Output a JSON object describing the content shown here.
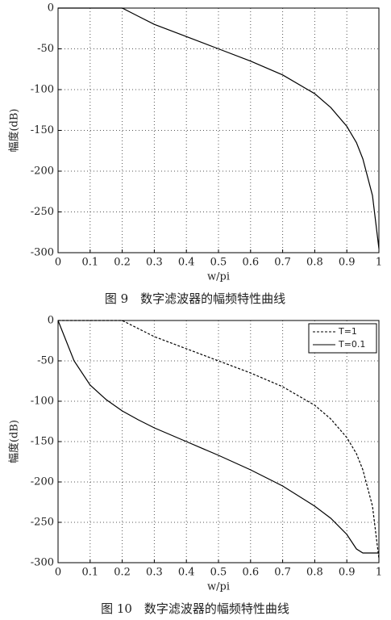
{
  "chart_data": [
    {
      "type": "line",
      "caption": "图 9　数字滤波器的幅频特性曲线",
      "xlabel": "w/pi",
      "ylabel": "幅度(dB)",
      "x": [
        0,
        0.02,
        0.05,
        0.1,
        0.15,
        0.2,
        0.25,
        0.3,
        0.4,
        0.5,
        0.6,
        0.7,
        0.8,
        0.85,
        0.9,
        0.93,
        0.95,
        0.98,
        1
      ],
      "values": [
        0,
        0,
        0,
        0,
        0,
        0,
        -10,
        -20,
        -35,
        -50,
        -65,
        -82,
        -105,
        -122,
        -145,
        -165,
        -185,
        -230,
        -295
      ],
      "color": "#000000",
      "xlim": [
        0,
        1
      ],
      "ylim": [
        -300,
        0
      ],
      "xticks": [
        0,
        0.1,
        0.2,
        0.3,
        0.4,
        0.5,
        0.6,
        0.7,
        0.8,
        0.9,
        1
      ],
      "yticks": [
        -300,
        -250,
        -200,
        -150,
        -100,
        -50,
        0
      ],
      "grid": true
    },
    {
      "type": "line",
      "caption": "图 10　数字滤波器的幅频特性曲线",
      "xlabel": "w/pi",
      "ylabel": "幅度(dB)",
      "x": [
        0,
        0.02,
        0.05,
        0.1,
        0.15,
        0.2,
        0.25,
        0.3,
        0.4,
        0.5,
        0.6,
        0.7,
        0.8,
        0.85,
        0.9,
        0.93,
        0.95,
        0.98,
        1
      ],
      "series": [
        {
          "name": "T=1",
          "color": "#000000",
          "linestyle": "dashed",
          "values": [
            0,
            0,
            0,
            0,
            0,
            0,
            -10,
            -20,
            -35,
            -50,
            -65,
            -82,
            -105,
            -122,
            -145,
            -165,
            -185,
            -230,
            -295
          ]
        },
        {
          "name": "T=0.1",
          "color": "#000000",
          "linestyle": "solid",
          "values": [
            0,
            -20,
            -50,
            -80,
            -98,
            -112,
            -123,
            -133,
            -150,
            -167,
            -185,
            -205,
            -230,
            -245,
            -265,
            -283,
            -288,
            -288,
            -288
          ]
        }
      ],
      "xlim": [
        0,
        1
      ],
      "ylim": [
        -300,
        0
      ],
      "xticks": [
        0,
        0.1,
        0.2,
        0.3,
        0.4,
        0.5,
        0.6,
        0.7,
        0.8,
        0.9,
        1
      ],
      "yticks": [
        -300,
        -250,
        -200,
        -150,
        -100,
        -50,
        0
      ],
      "grid": true,
      "legend": "upper right"
    }
  ]
}
